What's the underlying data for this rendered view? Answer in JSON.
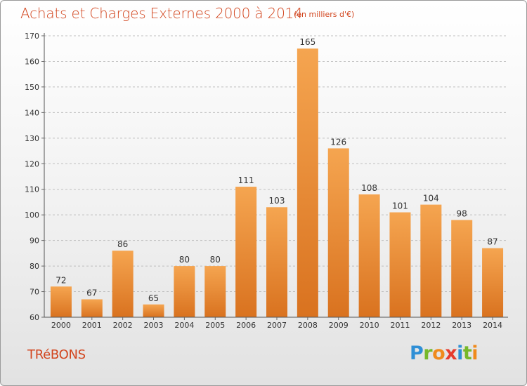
{
  "header": {
    "title": "Achats et Charges Externes 2000 à 2014",
    "unit": "(en milliers d'€)"
  },
  "footer": {
    "commune": "TRéBONS",
    "brand_letters": [
      {
        "char": "P",
        "color": "#2f8fd6"
      },
      {
        "char": "r",
        "color": "#76b82a"
      },
      {
        "char": "o",
        "color": "#f08a1c"
      },
      {
        "char": "x",
        "color": "#e63c2e"
      },
      {
        "char": "i",
        "color": "#2f8fd6"
      },
      {
        "char": "t",
        "color": "#76b82a"
      },
      {
        "char": "i",
        "color": "#f08a1c"
      }
    ]
  },
  "colors": {
    "accent": "#d2451e",
    "bar_light": "#f5a550",
    "bar_dark": "#d9721f",
    "grid": "#bfbfbf",
    "text": "#333333"
  },
  "chart_data": {
    "type": "bar",
    "categories": [
      "2000",
      "2001",
      "2002",
      "2003",
      "2004",
      "2005",
      "2006",
      "2007",
      "2008",
      "2009",
      "2010",
      "2011",
      "2012",
      "2013",
      "2014"
    ],
    "values": [
      72,
      67,
      86,
      65,
      80,
      80,
      111,
      103,
      165,
      126,
      108,
      101,
      104,
      98,
      87
    ],
    "ylim": [
      60,
      170
    ],
    "yticks": [
      60,
      70,
      80,
      90,
      100,
      110,
      120,
      130,
      140,
      150,
      160,
      170
    ],
    "grid": true,
    "data_labels": true
  }
}
